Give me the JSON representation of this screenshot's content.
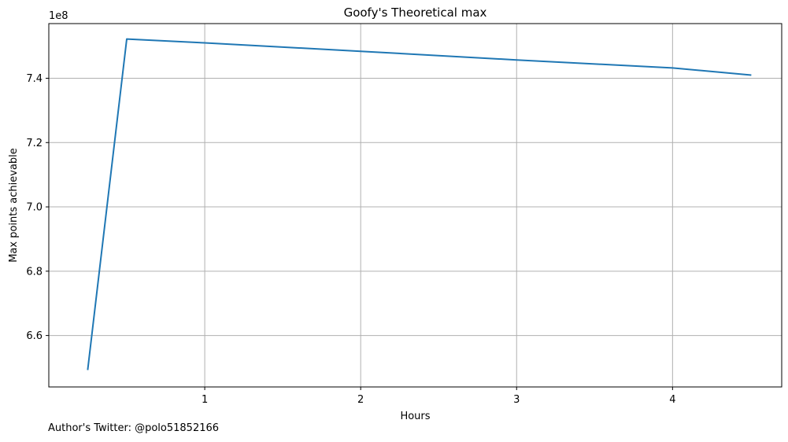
{
  "chart_data": {
    "type": "line",
    "title": "Goofy's Theoretical max",
    "xlabel": "Hours",
    "ylabel": "Max points achievable",
    "offset_label": "1e8",
    "xlim": [
      0.0,
      4.7
    ],
    "ylim": [
      6.44,
      7.57
    ],
    "xticks": [
      1,
      2,
      3,
      4
    ],
    "yticks": [
      6.6,
      6.8,
      7.0,
      7.2,
      7.4
    ],
    "grid": true,
    "series": [
      {
        "color": "#1f77b4",
        "x": [
          0.25,
          0.5,
          1,
          2,
          3,
          4,
          4.5
        ],
        "y": [
          6.495,
          7.522,
          7.51,
          7.484,
          7.457,
          7.432,
          7.41
        ]
      }
    ]
  },
  "footnote": "Author's Twitter: @polo51852166"
}
